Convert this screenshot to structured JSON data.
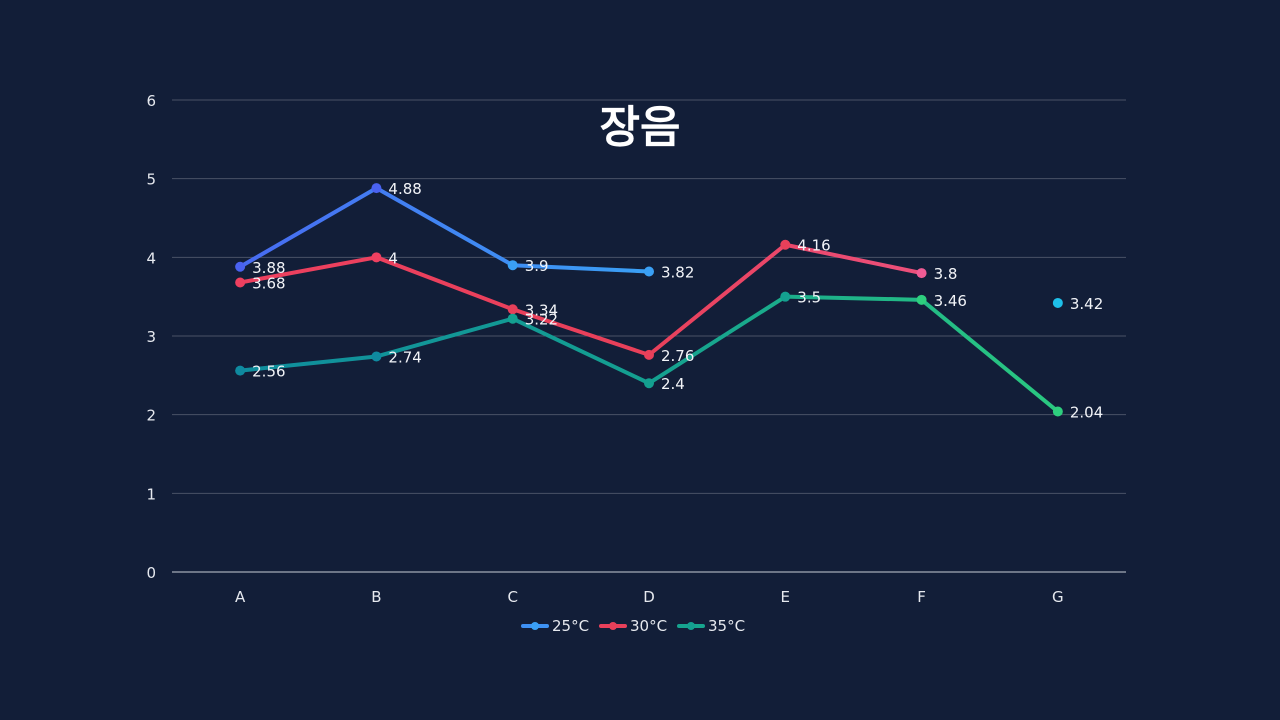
{
  "chart_data": {
    "type": "line",
    "title": "장음",
    "categories": [
      "A",
      "B",
      "C",
      "D",
      "E",
      "F",
      "G"
    ],
    "ylim": [
      0,
      6
    ],
    "yticks": [
      0,
      1,
      2,
      3,
      4,
      5,
      6
    ],
    "grid": true,
    "legend_position": "bottom",
    "series": [
      {
        "name": "25°C",
        "values": [
          3.88,
          4.88,
          3.9,
          3.82,
          null,
          null,
          3.42
        ],
        "labels": [
          "3.88",
          "4.88",
          "3.9",
          "3.82",
          null,
          null,
          "3.42"
        ],
        "colors": [
          "#4a62f0",
          "#3aa0f5",
          "#1ec0ea"
        ]
      },
      {
        "name": "30°C",
        "values": [
          3.68,
          4,
          3.34,
          2.76,
          4.16,
          3.8,
          null
        ],
        "labels": [
          "3.68",
          "4",
          "3.34",
          "2.76",
          "4.16",
          "3.8",
          null
        ],
        "colors": [
          "#ee4060",
          "#e8405a",
          "#f05c95"
        ]
      },
      {
        "name": "35°C",
        "values": [
          2.56,
          2.74,
          3.22,
          2.4,
          3.5,
          3.46,
          2.04
        ],
        "labels": [
          "2.56",
          "2.74",
          "3.22",
          "2.4",
          "3.5",
          "3.46",
          "2.04"
        ],
        "colors": [
          "#0f8aa0",
          "#14a090",
          "#2ecf7e"
        ]
      }
    ]
  }
}
